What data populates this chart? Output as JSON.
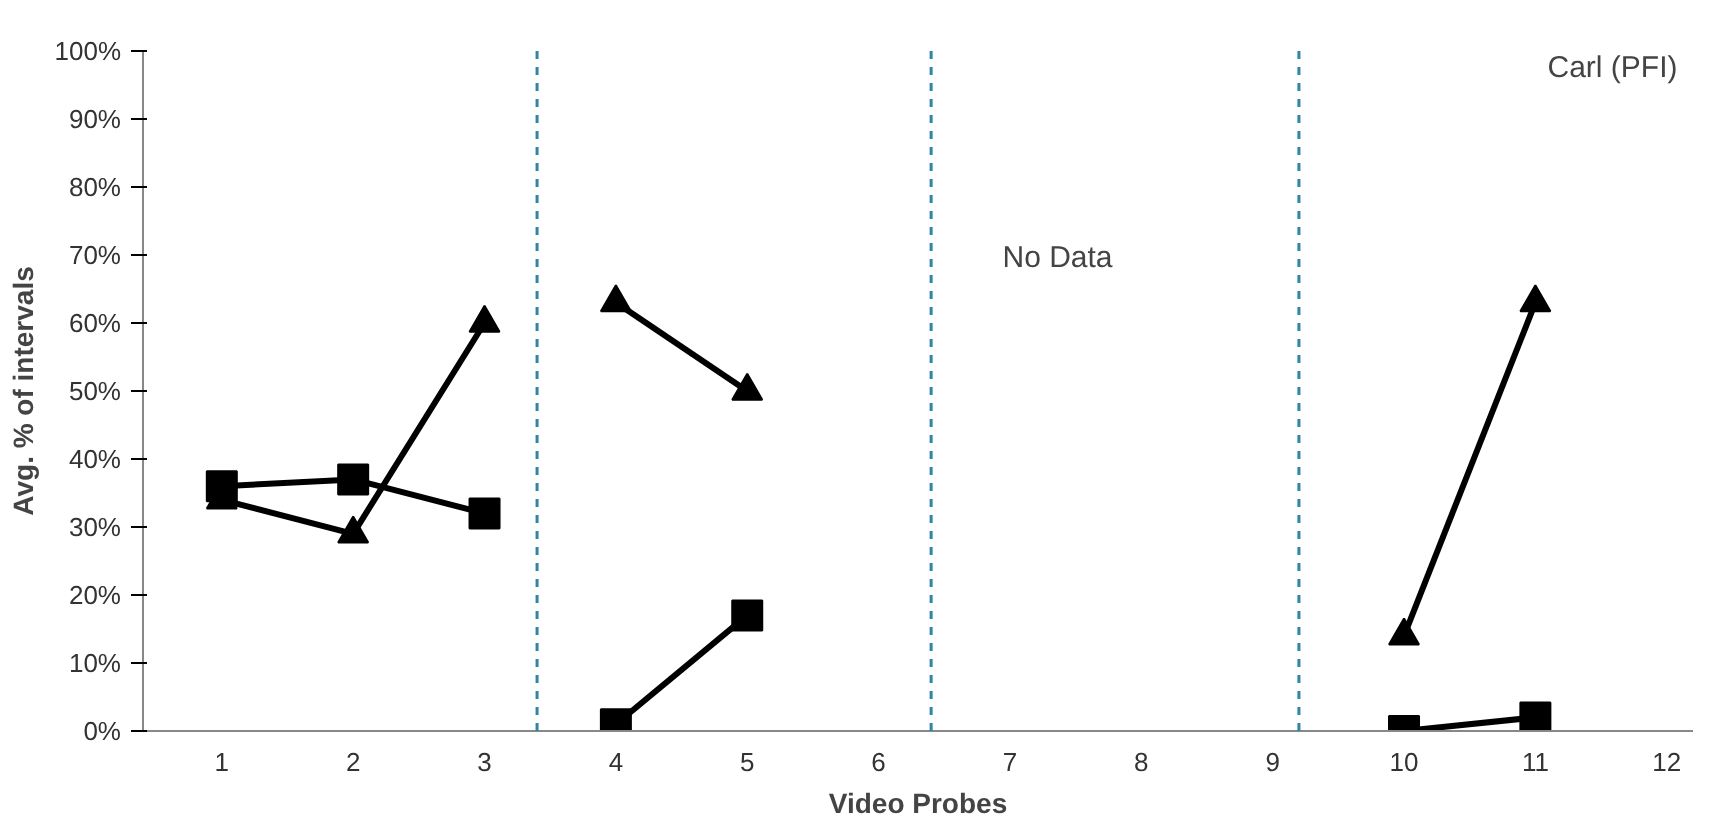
{
  "chart_data": {
    "type": "line",
    "xlabel": "Video Probes",
    "ylabel": "Avg. % of intervals",
    "annotations": [
      "No Data",
      "Carl (PFI)"
    ],
    "xlim": [
      0.4,
      12.2
    ],
    "xticks": [
      1,
      2,
      3,
      4,
      5,
      6,
      7,
      8,
      9,
      10,
      11,
      12
    ],
    "ylim": [
      0,
      100
    ],
    "yticks": [
      {
        "value": 0,
        "label": "0%"
      },
      {
        "value": 10,
        "label": "10%"
      },
      {
        "value": 20,
        "label": "20%"
      },
      {
        "value": 30,
        "label": "30%"
      },
      {
        "value": 40,
        "label": "40%"
      },
      {
        "value": 50,
        "label": "50%"
      },
      {
        "value": 60,
        "label": "60%"
      },
      {
        "value": 70,
        "label": "70%"
      },
      {
        "value": 80,
        "label": "80%"
      },
      {
        "value": 90,
        "label": "90%"
      },
      {
        "value": 100,
        "label": "100%"
      }
    ],
    "grid": false,
    "line_style": "solid",
    "series": [
      {
        "color": "#000000",
        "marker": "triangle",
        "x": [
          1,
          2,
          3
        ],
        "values": [
          34,
          29,
          60
        ]
      },
      {
        "color": "#000000",
        "marker": "square",
        "x": [
          1,
          2,
          3
        ],
        "values": [
          36,
          37,
          32
        ]
      },
      {
        "color": "#000000",
        "marker": "triangle",
        "x": [
          4,
          5
        ],
        "values": [
          63,
          50
        ]
      },
      {
        "color": "#000000",
        "marker": "square",
        "x": [
          4,
          5
        ],
        "values": [
          1,
          17
        ]
      },
      {
        "color": "#000000",
        "marker": "triangle",
        "x": [
          10,
          11
        ],
        "values": [
          14,
          63
        ]
      },
      {
        "color": "#000000",
        "marker": "square",
        "x": [
          10,
          11
        ],
        "values": [
          0,
          2
        ]
      }
    ],
    "ref_lines": [
      {
        "axis": "x",
        "value": 3.4,
        "label": null,
        "color": "#31859c",
        "line_style": "dashed"
      },
      {
        "axis": "x",
        "value": 6.4,
        "label": null,
        "color": "#31859c",
        "line_style": "dashed"
      },
      {
        "axis": "x",
        "value": 9.2,
        "label": null,
        "color": "#31859c",
        "line_style": "dashed"
      }
    ]
  }
}
